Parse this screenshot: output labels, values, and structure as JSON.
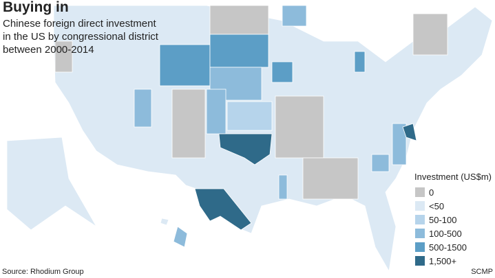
{
  "header": {
    "title": "Buying in",
    "subtitle_lines": [
      "Chinese foreign direct investment",
      "in the US by congressional district",
      "between 2000-2014"
    ]
  },
  "legend": {
    "title": "Investment (US$m)",
    "items": [
      {
        "label": "0",
        "color": "#c6c6c6"
      },
      {
        "label": "<50",
        "color": "#dce9f4"
      },
      {
        "label": "50-100",
        "color": "#b6d4eb"
      },
      {
        "label": "100-500",
        "color": "#8dbbdb"
      },
      {
        "label": "500-1500",
        "color": "#5c9ec6"
      },
      {
        "label": "1,500+",
        "color": "#2f6a89"
      }
    ]
  },
  "footer": {
    "source": "Source: Rhodium Group",
    "credit": "SCMP"
  }
}
